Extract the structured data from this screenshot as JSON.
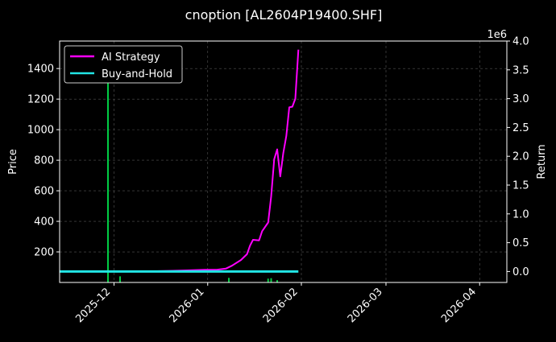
{
  "title": "cnoption [AL2604P19400.SHF]",
  "colors": {
    "background": "#000000",
    "axes": "#ffffff",
    "grid": "#555555",
    "ai_strategy": "#ff00ff",
    "buy_and_hold": "#22e5e5",
    "volume_up": "#00cc44",
    "volume_down": "#cc2244"
  },
  "chart_data": {
    "type": "line",
    "title": "cnoption [AL2604P19400.SHF]",
    "xlabel": "",
    "ylabel": "Price",
    "y2label": "Return",
    "y2_scale_label": "1e6",
    "xlim": [
      "2025-11-13",
      "2026-04-10"
    ],
    "ylim": [
      0,
      1580
    ],
    "y2lim": [
      -0.19,
      4.0
    ],
    "x_ticks": [
      "2025-12",
      "2026-01",
      "2026-02",
      "2026-03",
      "2026-04"
    ],
    "y_ticks": [
      200,
      400,
      600,
      800,
      1000,
      1200,
      1400
    ],
    "y2_ticks": [
      "0.0",
      "0.5",
      "1.0",
      "1.5",
      "2.0",
      "2.5",
      "3.0",
      "3.5",
      "4.0"
    ],
    "grid": true,
    "legend": {
      "position": "top-left",
      "entries": [
        "AI Strategy",
        "Buy-and-Hold"
      ]
    },
    "series": [
      {
        "name": "AI Strategy",
        "axis": "right",
        "x": [
          "2025-11-13",
          "2025-11-20",
          "2025-11-27",
          "2025-12-04",
          "2025-12-11",
          "2025-12-18",
          "2025-12-25",
          "2025-12-31",
          "2026-01-04",
          "2026-01-07",
          "2026-01-09",
          "2026-01-12",
          "2026-01-14",
          "2026-01-15",
          "2026-01-16",
          "2026-01-18",
          "2026-01-19",
          "2026-01-21",
          "2026-01-22",
          "2026-01-23",
          "2026-01-24",
          "2026-01-25",
          "2026-01-26",
          "2026-01-27",
          "2026-01-28",
          "2026-01-29",
          "2026-01-30",
          "2026-01-31"
        ],
        "values": [
          0.0,
          0.0,
          0.0,
          0.0,
          0.0,
          0.01,
          0.02,
          0.03,
          0.03,
          0.05,
          0.1,
          0.2,
          0.3,
          0.45,
          0.55,
          0.54,
          0.7,
          0.85,
          1.3,
          1.95,
          2.12,
          1.65,
          2.05,
          2.35,
          2.85,
          2.86,
          3.0,
          3.85
        ]
      },
      {
        "name": "Buy-and-Hold",
        "axis": "right",
        "x": [
          "2025-11-13",
          "2026-01-31"
        ],
        "values": [
          0.0,
          0.0
        ]
      },
      {
        "axis": "left",
        "style": "bars",
        "x": [
          "2025-11-29",
          "2025-12-03",
          "2026-01-08",
          "2026-01-21",
          "2026-01-22",
          "2026-01-24"
        ],
        "values": [
          1520,
          40,
          30,
          25,
          28,
          15
        ],
        "color": "#00cc44"
      }
    ]
  }
}
